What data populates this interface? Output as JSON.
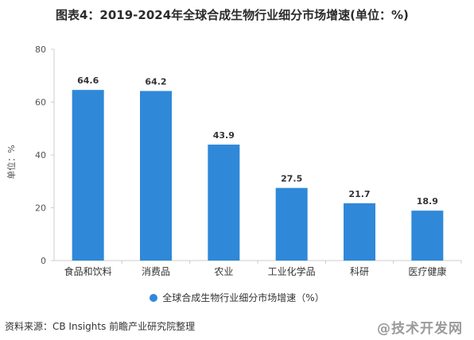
{
  "title": "图表4：2019-2024年全球合成生物行业细分市场增速(单位：%)",
  "source": "资料来源：CB Insights 前瞻产业研究院整理",
  "watermark": "@技术开发网",
  "legend_label": "全球合成生物行业细分市场增速（%）",
  "colors": {
    "bar": "#2f88d8",
    "axis": "#cccccc",
    "grid": "#e6e6e6"
  },
  "chart_data": {
    "type": "bar",
    "title": "图表4：2019-2024年全球合成生物行业细分市场增速(单位：%)",
    "ylabel": "单位：%",
    "xlabel": "",
    "categories": [
      "食品和饮料",
      "消费品",
      "农业",
      "工业化学品",
      "科研",
      "医疗健康"
    ],
    "series": [
      {
        "name": "全球合成生物行业细分市场增速（%）",
        "values": [
          64.6,
          64.2,
          43.9,
          27.5,
          21.7,
          18.9
        ]
      }
    ],
    "ylim": [
      0,
      80
    ],
    "yticks": [
      0,
      20,
      40,
      60,
      80
    ],
    "grid": false,
    "legend": "bottom"
  }
}
